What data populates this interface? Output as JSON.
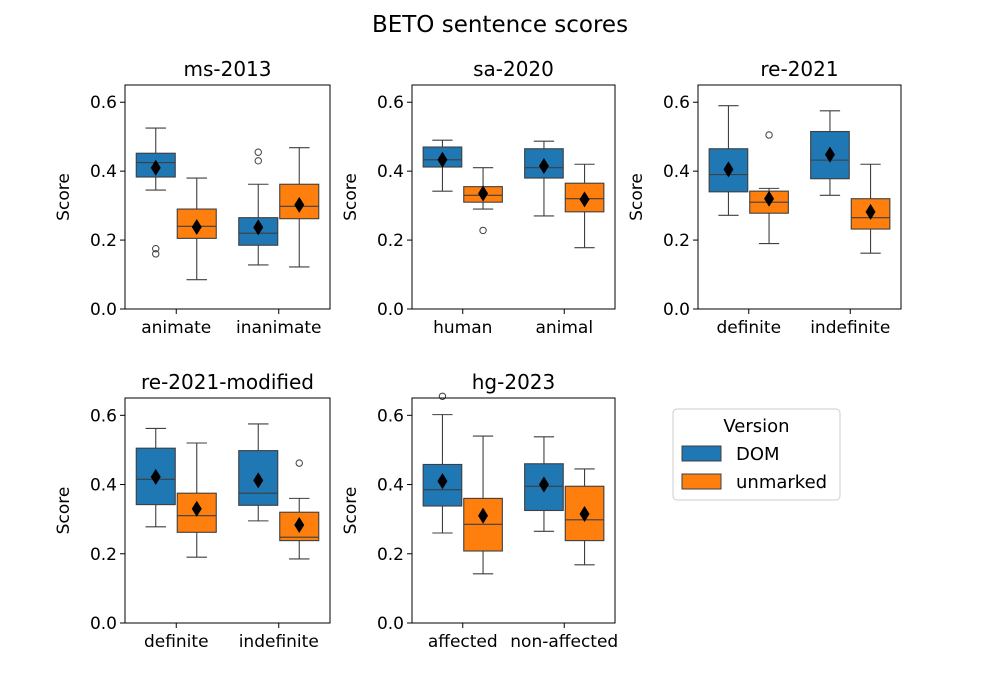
{
  "title": "BETO sentence scores",
  "y_axis_label": "Score",
  "y_ticks": [
    "0.0",
    "0.2",
    "0.4",
    "0.6"
  ],
  "legend": {
    "title": "Version",
    "placement": "right",
    "entries": [
      {
        "label": "DOM",
        "color": "#1f77b4"
      },
      {
        "label": "unmarked",
        "color": "#ff7f0e"
      }
    ]
  },
  "chart_data": [
    {
      "type": "box",
      "title": "ms-2013",
      "ylabel": "Score",
      "ylim": [
        0,
        0.65
      ],
      "categories": [
        "animate",
        "inanimate"
      ],
      "series": [
        {
          "name": "DOM",
          "color": "#1f77b4",
          "boxes": [
            {
              "whislo": 0.345,
              "q1": 0.383,
              "med": 0.425,
              "q3": 0.452,
              "whishi": 0.525,
              "mean": 0.41,
              "fliers": [
                0.175,
                0.16
              ]
            },
            {
              "whislo": 0.128,
              "q1": 0.185,
              "med": 0.22,
              "q3": 0.265,
              "whishi": 0.362,
              "mean": 0.237,
              "fliers": [
                0.455,
                0.43
              ]
            }
          ]
        },
        {
          "name": "unmarked",
          "color": "#ff7f0e",
          "boxes": [
            {
              "whislo": 0.085,
              "q1": 0.205,
              "med": 0.24,
              "q3": 0.29,
              "whishi": 0.38,
              "mean": 0.238,
              "fliers": []
            },
            {
              "whislo": 0.122,
              "q1": 0.262,
              "med": 0.298,
              "q3": 0.362,
              "whishi": 0.468,
              "mean": 0.302,
              "fliers": []
            }
          ]
        }
      ]
    },
    {
      "type": "box",
      "title": "sa-2020",
      "ylabel": "Score",
      "ylim": [
        0,
        0.65
      ],
      "categories": [
        "human",
        "animal"
      ],
      "series": [
        {
          "name": "DOM",
          "color": "#1f77b4",
          "boxes": [
            {
              "whislo": 0.342,
              "q1": 0.412,
              "med": 0.433,
              "q3": 0.47,
              "whishi": 0.49,
              "mean": 0.433,
              "fliers": []
            },
            {
              "whislo": 0.27,
              "q1": 0.38,
              "med": 0.41,
              "q3": 0.465,
              "whishi": 0.487,
              "mean": 0.415,
              "fliers": []
            }
          ]
        },
        {
          "name": "unmarked",
          "color": "#ff7f0e",
          "boxes": [
            {
              "whislo": 0.29,
              "q1": 0.31,
              "med": 0.33,
              "q3": 0.355,
              "whishi": 0.41,
              "mean": 0.335,
              "fliers": [
                0.228
              ]
            },
            {
              "whislo": 0.178,
              "q1": 0.282,
              "med": 0.32,
              "q3": 0.365,
              "whishi": 0.42,
              "mean": 0.318,
              "fliers": []
            }
          ]
        }
      ]
    },
    {
      "type": "box",
      "title": "re-2021",
      "ylabel": "Score",
      "ylim": [
        0,
        0.65
      ],
      "categories": [
        "definite",
        "indefinite"
      ],
      "series": [
        {
          "name": "DOM",
          "color": "#1f77b4",
          "boxes": [
            {
              "whislo": 0.272,
              "q1": 0.34,
              "med": 0.39,
              "q3": 0.465,
              "whishi": 0.59,
              "mean": 0.405,
              "fliers": []
            },
            {
              "whislo": 0.33,
              "q1": 0.378,
              "med": 0.432,
              "q3": 0.515,
              "whishi": 0.575,
              "mean": 0.448,
              "fliers": []
            }
          ]
        },
        {
          "name": "unmarked",
          "color": "#ff7f0e",
          "boxes": [
            {
              "whislo": 0.19,
              "q1": 0.278,
              "med": 0.31,
              "q3": 0.342,
              "whishi": 0.35,
              "mean": 0.32,
              "fliers": [
                0.505
              ]
            },
            {
              "whislo": 0.162,
              "q1": 0.232,
              "med": 0.265,
              "q3": 0.32,
              "whishi": 0.42,
              "mean": 0.282,
              "fliers": []
            }
          ]
        }
      ]
    },
    {
      "type": "box",
      "title": "re-2021-modified",
      "ylabel": "Score",
      "ylim": [
        0,
        0.65
      ],
      "categories": [
        "definite",
        "indefinite"
      ],
      "series": [
        {
          "name": "DOM",
          "color": "#1f77b4",
          "boxes": [
            {
              "whislo": 0.278,
              "q1": 0.342,
              "med": 0.415,
              "q3": 0.505,
              "whishi": 0.562,
              "mean": 0.422,
              "fliers": []
            },
            {
              "whislo": 0.295,
              "q1": 0.34,
              "med": 0.375,
              "q3": 0.498,
              "whishi": 0.575,
              "mean": 0.412,
              "fliers": []
            }
          ]
        },
        {
          "name": "unmarked",
          "color": "#ff7f0e",
          "boxes": [
            {
              "whislo": 0.19,
              "q1": 0.262,
              "med": 0.31,
              "q3": 0.375,
              "whishi": 0.52,
              "mean": 0.33,
              "fliers": []
            },
            {
              "whislo": 0.185,
              "q1": 0.238,
              "med": 0.248,
              "q3": 0.32,
              "whishi": 0.36,
              "mean": 0.283,
              "fliers": [
                0.462
              ]
            }
          ]
        }
      ]
    },
    {
      "type": "box",
      "title": "hg-2023",
      "ylabel": "Score",
      "ylim": [
        0,
        0.65
      ],
      "categories": [
        "affected",
        "non-affected"
      ],
      "series": [
        {
          "name": "DOM",
          "color": "#1f77b4",
          "boxes": [
            {
              "whislo": 0.26,
              "q1": 0.338,
              "med": 0.385,
              "q3": 0.458,
              "whishi": 0.602,
              "mean": 0.41,
              "fliers": [
                0.655
              ]
            },
            {
              "whislo": 0.265,
              "q1": 0.325,
              "med": 0.395,
              "q3": 0.46,
              "whishi": 0.538,
              "mean": 0.4,
              "fliers": []
            }
          ]
        },
        {
          "name": "unmarked",
          "color": "#ff7f0e",
          "boxes": [
            {
              "whislo": 0.142,
              "q1": 0.208,
              "med": 0.285,
              "q3": 0.36,
              "whishi": 0.54,
              "mean": 0.31,
              "fliers": []
            },
            {
              "whislo": 0.168,
              "q1": 0.238,
              "med": 0.298,
              "q3": 0.395,
              "whishi": 0.445,
              "mean": 0.315,
              "fliers": []
            }
          ]
        }
      ]
    }
  ]
}
